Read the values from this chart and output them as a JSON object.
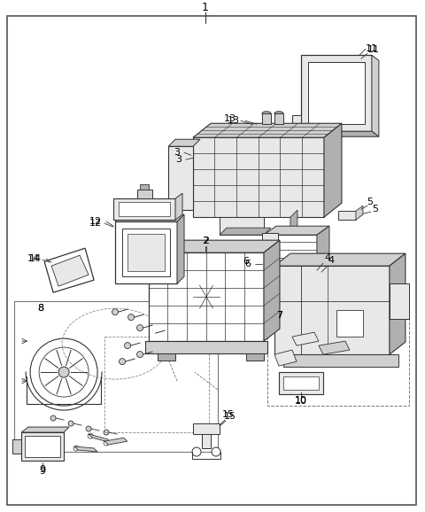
{
  "bg_color": "#ffffff",
  "border_color": "#555555",
  "line_color": "#555555",
  "dark_line": "#333333",
  "fig_width": 4.8,
  "fig_height": 5.78,
  "dpi": 100
}
